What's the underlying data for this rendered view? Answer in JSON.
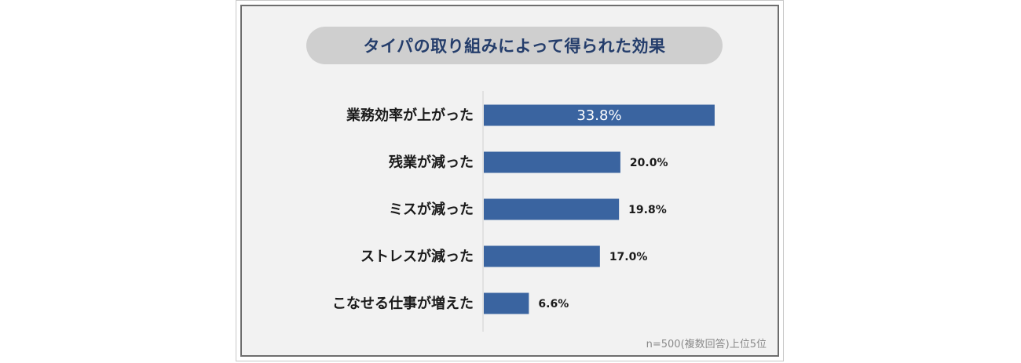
{
  "chart_data": {
    "type": "bar",
    "orientation": "horizontal",
    "title": "タイパの取り組みによって得られた効果",
    "categories": [
      "業務効率が上がった",
      "残業が減った",
      "ミスが減った",
      "ストレスが減った",
      "こなせる仕事が増えた"
    ],
    "values": [
      33.8,
      20.0,
      19.8,
      17.0,
      6.6
    ],
    "value_labels": [
      "33.8%",
      "20.0%",
      "19.8%",
      "17.0%",
      "6.6%"
    ],
    "unit": "%",
    "xlim": [
      0,
      34.5
    ],
    "grid": false,
    "bar_color": "#3a64a0",
    "note": "n=500(複数回答)上位5位"
  },
  "colors": {
    "bar": "#3a64a0",
    "title_text": "#243d6b",
    "title_pill": "#cfcfcf",
    "background": "#f2f2f2"
  }
}
